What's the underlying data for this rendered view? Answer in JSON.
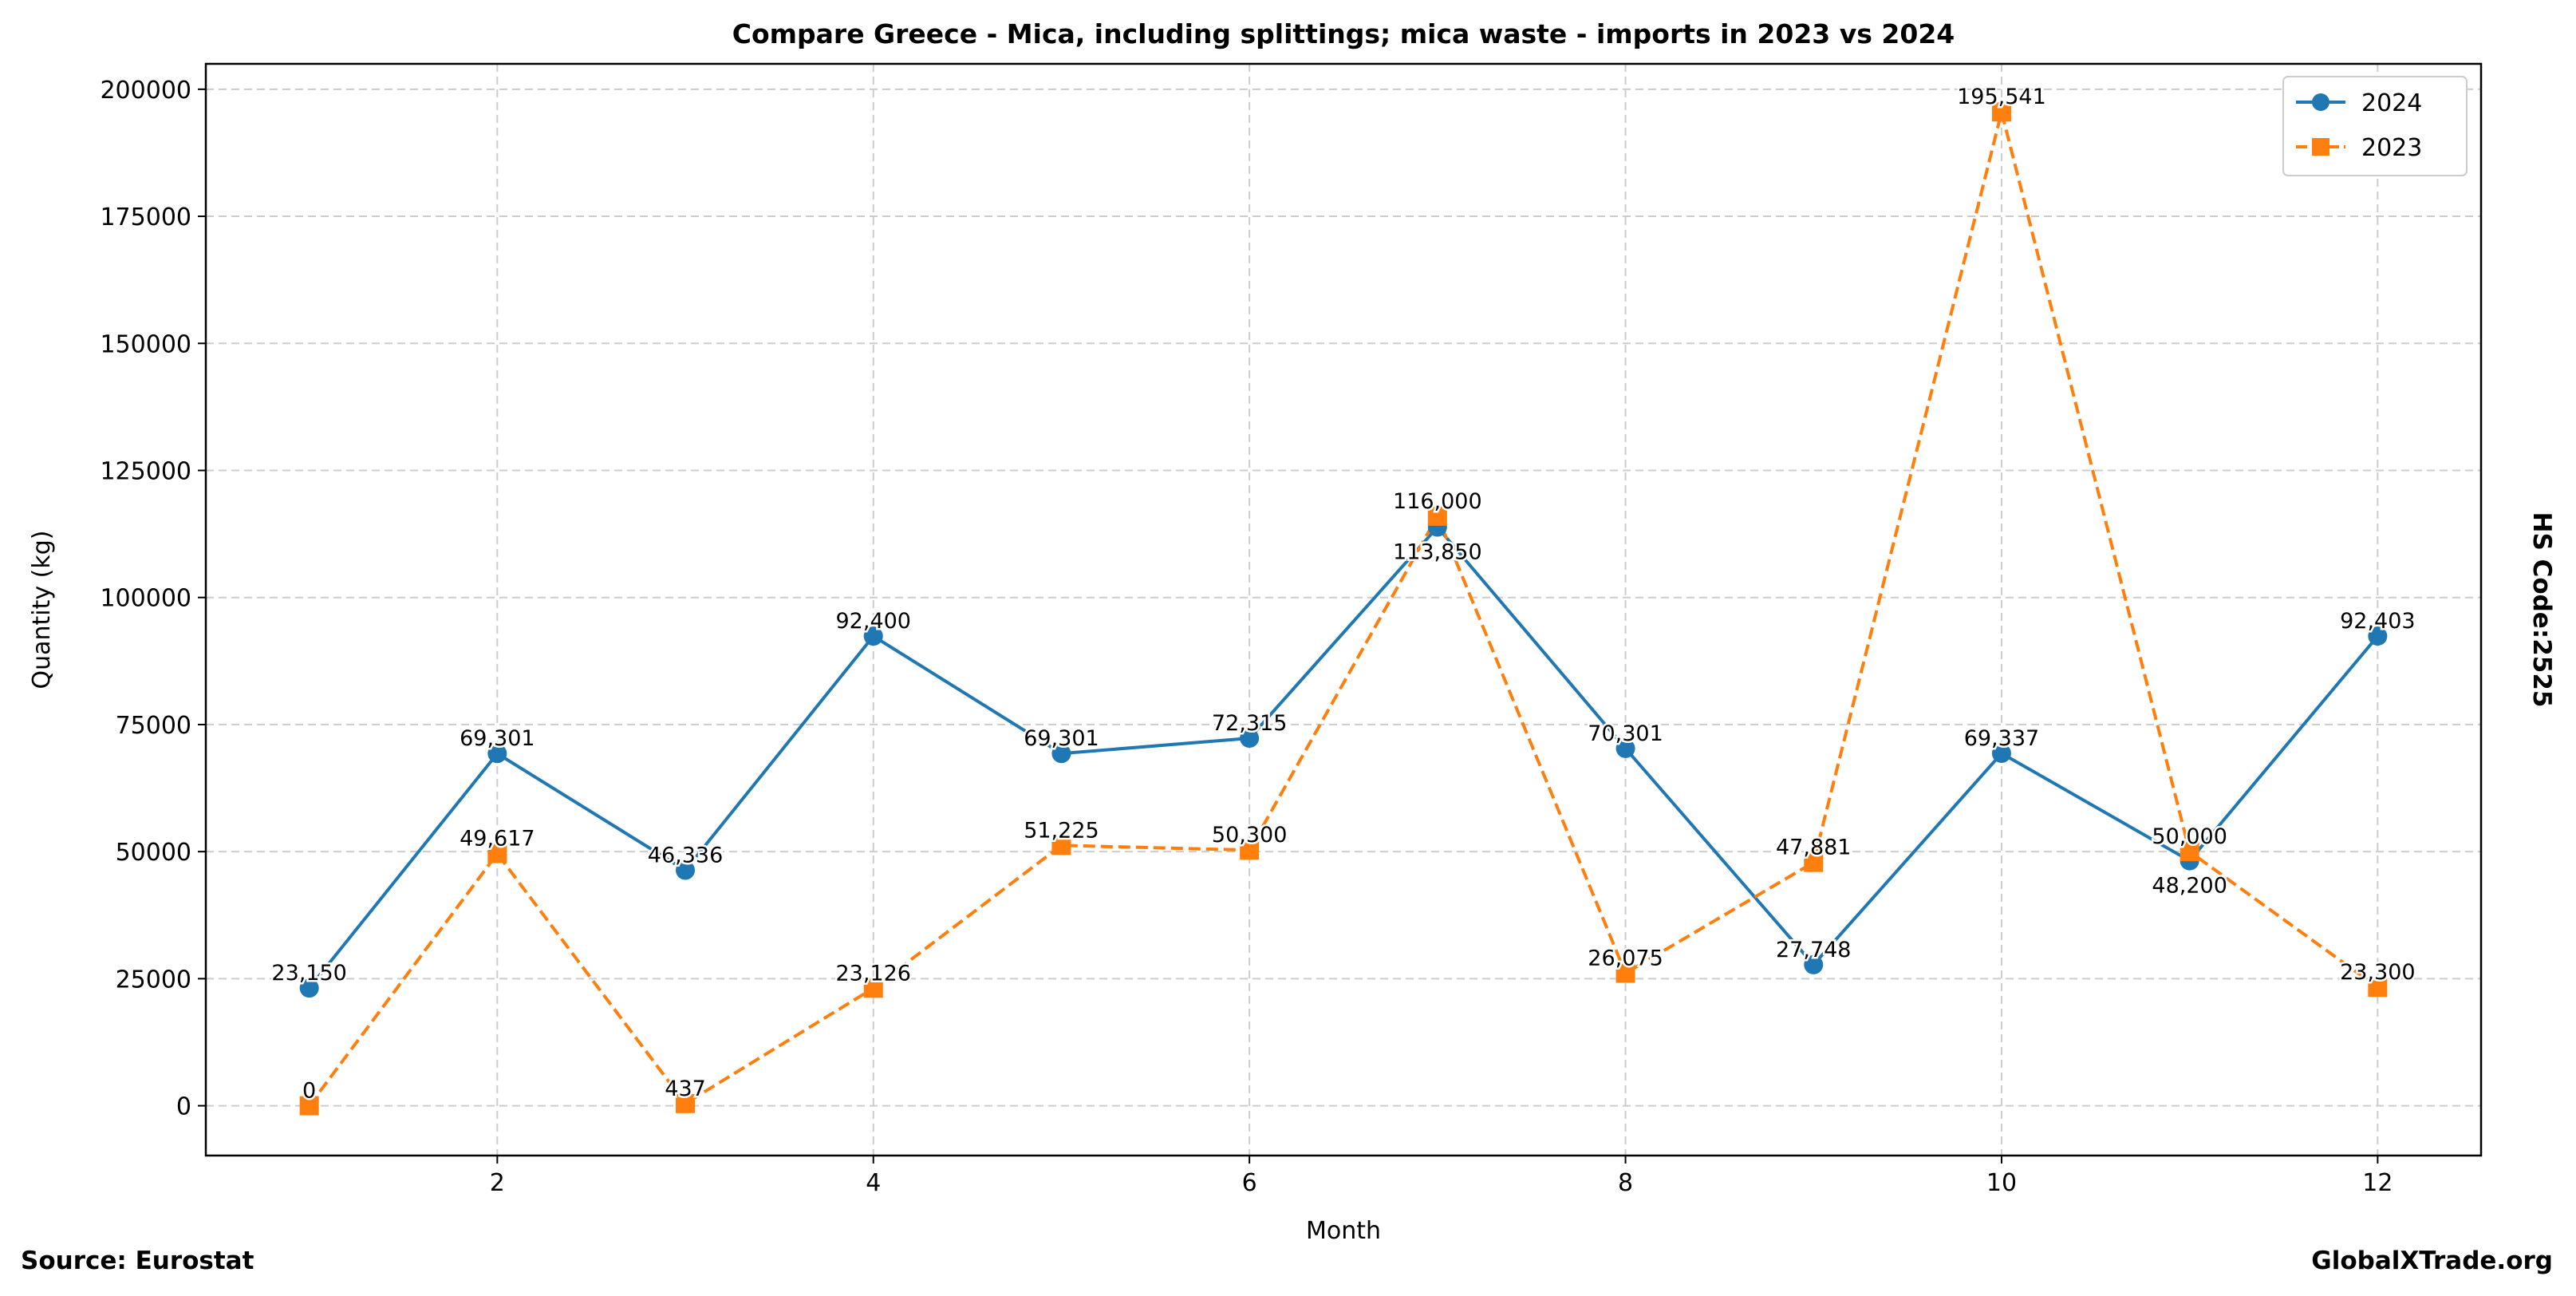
{
  "chart_data": {
    "type": "line",
    "title": "Compare Greece - Mica, including splittings; mica waste - imports in 2023 vs 2024",
    "xlabel": "Month",
    "ylabel": "Quantity (kg)",
    "x": [
      1,
      2,
      3,
      4,
      5,
      6,
      7,
      8,
      9,
      10,
      11,
      12
    ],
    "xticks": [
      2,
      4,
      6,
      8,
      10,
      12
    ],
    "yticks": [
      0,
      25000,
      50000,
      75000,
      100000,
      125000,
      150000,
      175000,
      200000
    ],
    "xlim": [
      0.45,
      12.55
    ],
    "ylim": [
      -9800,
      205000
    ],
    "grid": true,
    "legend_placement": "top-right",
    "series": [
      {
        "name": "2024",
        "color": "#1f77b4",
        "marker": "circle",
        "linestyle": "solid",
        "values": [
          23150,
          69301,
          46336,
          92400,
          69301,
          72315,
          113850,
          70301,
          27748,
          69337,
          48200,
          92403
        ],
        "labels": [
          "23,150",
          "69,301",
          "46,336",
          "92,400",
          "69,301",
          "72,315",
          "113,850",
          "70,301",
          "27,748",
          "69,337",
          "48,200",
          "92,403"
        ]
      },
      {
        "name": "2023",
        "color": "#ff7f0e",
        "marker": "square",
        "linestyle": "dashed",
        "values": [
          0,
          49617,
          437,
          23126,
          51225,
          50300,
          116000,
          26075,
          47881,
          195541,
          50000,
          23300
        ],
        "labels": [
          "0",
          "49,617",
          "437",
          "23,126",
          "51,225",
          "50,300",
          "116,000",
          "26,075",
          "47,881",
          "195,541",
          "50,000",
          "23,300"
        ]
      }
    ]
  },
  "annotations": {
    "source": "Source: Eurostat",
    "site": "GlobalXTrade.org",
    "hs_code": "HS Code:2525"
  }
}
